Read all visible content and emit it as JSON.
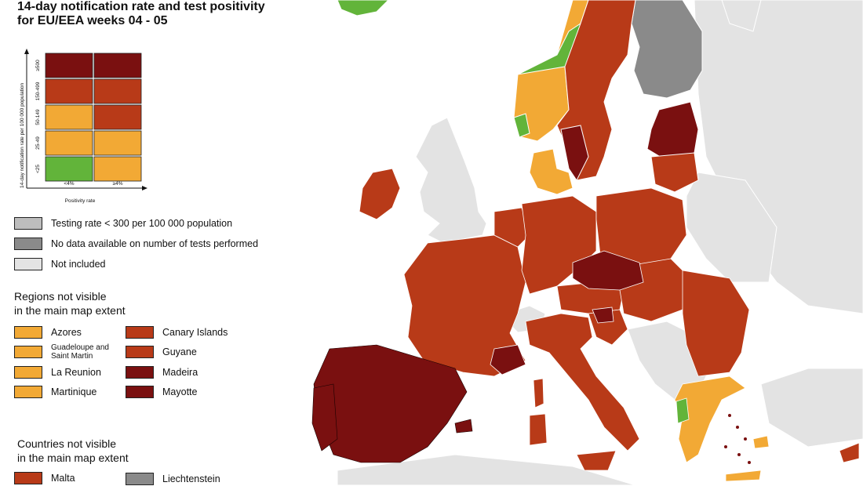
{
  "title": {
    "line1": "14-day notification rate and test positivity",
    "line2": "for EU/EEA weeks 04 - 05"
  },
  "matrix": {
    "y_axis_label": "14-day notification rate per 100 000 population",
    "x_axis_label": "Positivity rate",
    "row_labels": [
      "≥500",
      "150-499",
      "50-149",
      "25-49",
      "<25"
    ],
    "col_labels": [
      "<4%",
      "≥4%"
    ],
    "cells": [
      [
        "#7a1010",
        "#7a1010"
      ],
      [
        "#b83a18",
        "#b83a18"
      ],
      [
        "#f2a935",
        "#b83a18"
      ],
      [
        "#f2a935",
        "#f2a935"
      ],
      [
        "#62b43a",
        "#f2a935"
      ]
    ]
  },
  "grey_legend": [
    {
      "label": "Testing rate < 300 per 100 000 population",
      "color": "#bdbdbd"
    },
    {
      "label": "No data available on number of tests performed",
      "color": "#8a8a8a"
    },
    {
      "label": "Not included",
      "color": "#e3e3e3"
    }
  ],
  "regions_section": {
    "heading_line1": "Regions not visible",
    "heading_line2": "in the main map extent",
    "left": [
      {
        "label": "Azores",
        "color": "#f2a935"
      },
      {
        "label": "Guadeloupe and Saint Martin",
        "color": "#f2a935"
      },
      {
        "label": "La Reunion",
        "color": "#f2a935"
      },
      {
        "label": "Martinique",
        "color": "#f2a935"
      }
    ],
    "right": [
      {
        "label": "Canary Islands",
        "color": "#b83a18"
      },
      {
        "label": "Guyane",
        "color": "#b83a18"
      },
      {
        "label": "Madeira",
        "color": "#7a1010"
      },
      {
        "label": "Mayotte",
        "color": "#7a1010"
      }
    ]
  },
  "countries_section": {
    "heading_line1": "Countries not visible",
    "heading_line2": "in the main map extent",
    "left": [
      {
        "label": "Malta",
        "color": "#b83a18"
      }
    ],
    "right": [
      {
        "label": "Liechtenstein",
        "color": "#8a8a8a"
      }
    ]
  },
  "colors": {
    "sea": "#ffffff",
    "not_included": "#e3e3e3",
    "dark_red": "#7a1010",
    "red": "#b83a18",
    "orange": "#f2a935",
    "green": "#62b43a",
    "grey_no_data": "#8a8a8a",
    "light_grey": "#bdbdbd"
  }
}
